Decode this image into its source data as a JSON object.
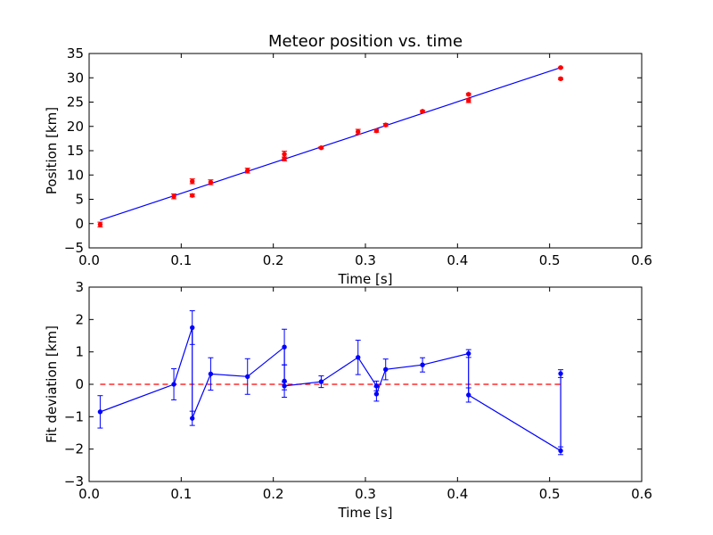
{
  "chart_data": [
    {
      "type": "scatter",
      "title": "Meteor position vs. time",
      "xlabel": "Time [s]",
      "ylabel": "Position [km]",
      "xlim": [
        0.0,
        0.6
      ],
      "ylim": [
        -5,
        35
      ],
      "xticks": [
        "0.0",
        "0.1",
        "0.2",
        "0.3",
        "0.4",
        "0.5",
        "0.6"
      ],
      "yticks": [
        "−5",
        "0",
        "5",
        "10",
        "15",
        "20",
        "25",
        "30",
        "35"
      ],
      "grid": false,
      "colors": {
        "points": "#ff0000",
        "fit": "#0000ff"
      },
      "series": [
        {
          "style": "points-with-errorbars",
          "x": [
            0.012,
            0.092,
            0.112,
            0.112,
            0.132,
            0.172,
            0.212,
            0.212,
            0.252,
            0.292,
            0.312,
            0.322,
            0.362,
            0.412,
            0.412,
            0.512,
            0.512
          ],
          "y": [
            -0.2,
            5.6,
            8.7,
            5.8,
            8.5,
            10.9,
            14.3,
            13.3,
            15.6,
            18.9,
            19.1,
            20.3,
            23.1,
            26.6,
            25.3,
            32.1,
            29.8
          ],
          "yerr": [
            0.5,
            0.5,
            0.5,
            0.3,
            0.5,
            0.5,
            0.6,
            0.4,
            0.2,
            0.5,
            0.3,
            0.3,
            0.2,
            0.2,
            0.4,
            0.1,
            0.2
          ]
        },
        {
          "style": "line",
          "x": [
            0.012,
            0.512
          ],
          "y": [
            0.7,
            32.1
          ]
        }
      ]
    },
    {
      "type": "line",
      "title": "",
      "xlabel": "Time [s]",
      "ylabel": "Fit deviation [km]",
      "xlim": [
        0.0,
        0.6
      ],
      "ylim": [
        -3,
        3
      ],
      "xticks": [
        "0.0",
        "0.1",
        "0.2",
        "0.3",
        "0.4",
        "0.5",
        "0.6"
      ],
      "yticks": [
        "−3",
        "−2",
        "−1",
        "0",
        "1",
        "2",
        "3"
      ],
      "grid": false,
      "colors": {
        "series": "#0000ff",
        "zero_line": "#ff0000"
      },
      "series": [
        {
          "style": "line-with-errorbars",
          "x": [
            0.012,
            0.092,
            0.112,
            0.112,
            0.132,
            0.172,
            0.212,
            0.212,
            0.212,
            0.252,
            0.292,
            0.312,
            0.312,
            0.322,
            0.362,
            0.412,
            0.412,
            0.512,
            0.512
          ],
          "y": [
            -0.85,
            0.0,
            1.75,
            -1.05,
            0.32,
            0.24,
            1.15,
            0.1,
            -0.05,
            0.08,
            0.83,
            -0.05,
            -0.3,
            0.46,
            0.6,
            0.95,
            -0.33,
            -2.05,
            0.33
          ],
          "yerr": [
            0.5,
            0.48,
            0.52,
            0.22,
            0.5,
            0.55,
            0.55,
            0.5,
            0.12,
            0.18,
            0.53,
            0.15,
            0.22,
            0.32,
            0.22,
            0.12,
            0.22,
            0.12,
            0.12
          ]
        },
        {
          "style": "dashed",
          "x": [
            0.012,
            0.512
          ],
          "y": [
            0,
            0
          ]
        }
      ]
    }
  ]
}
